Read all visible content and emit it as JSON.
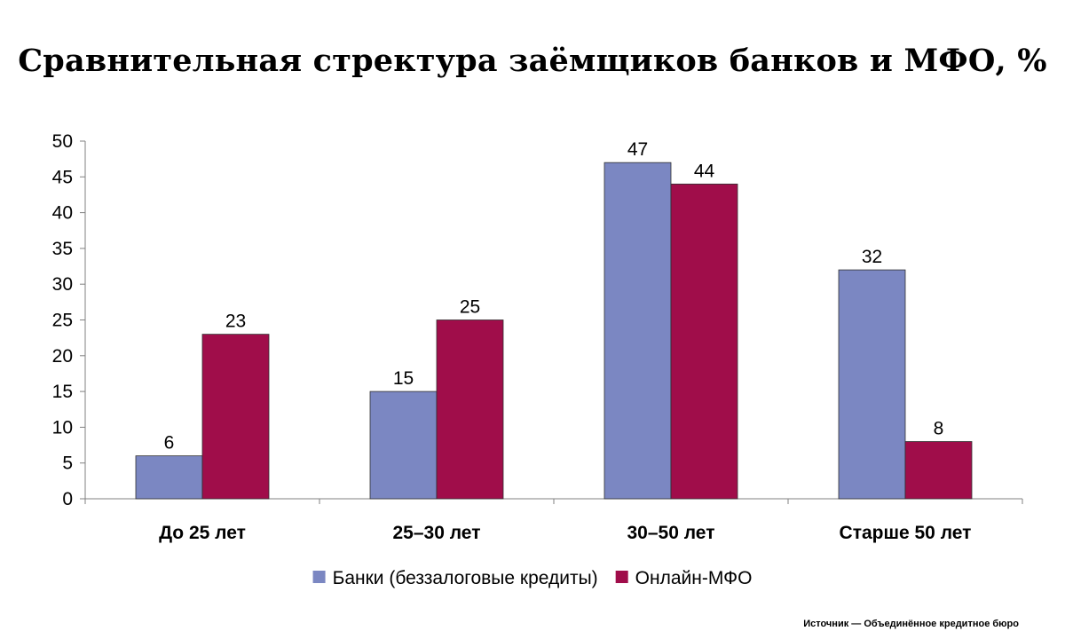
{
  "title": "Сравнительная стректура заёмщиков банков и МФО, %",
  "source": "Источник — Объединённое кредитное бюро",
  "chart_data": {
    "type": "bar",
    "title": "Сравнительная стректура заёмщиков банков и МФО, %",
    "categories": [
      "До 25 лет",
      "25–30 лет",
      "30–50 лет",
      "Старше 50 лет"
    ],
    "series": [
      {
        "name": "Банки (беззалоговые кредиты)",
        "color": "#7b87c2",
        "values": [
          6,
          15,
          47,
          32
        ]
      },
      {
        "name": "Онлайн-МФО",
        "color": "#a00d4a",
        "values": [
          23,
          25,
          44,
          8
        ]
      }
    ],
    "ylim": [
      0,
      50
    ],
    "yticks": [
      "0",
      "5",
      "10",
      "15",
      "20",
      "25",
      "30",
      "35",
      "40",
      "45",
      "50"
    ],
    "grid": false,
    "legend": "bottom"
  }
}
